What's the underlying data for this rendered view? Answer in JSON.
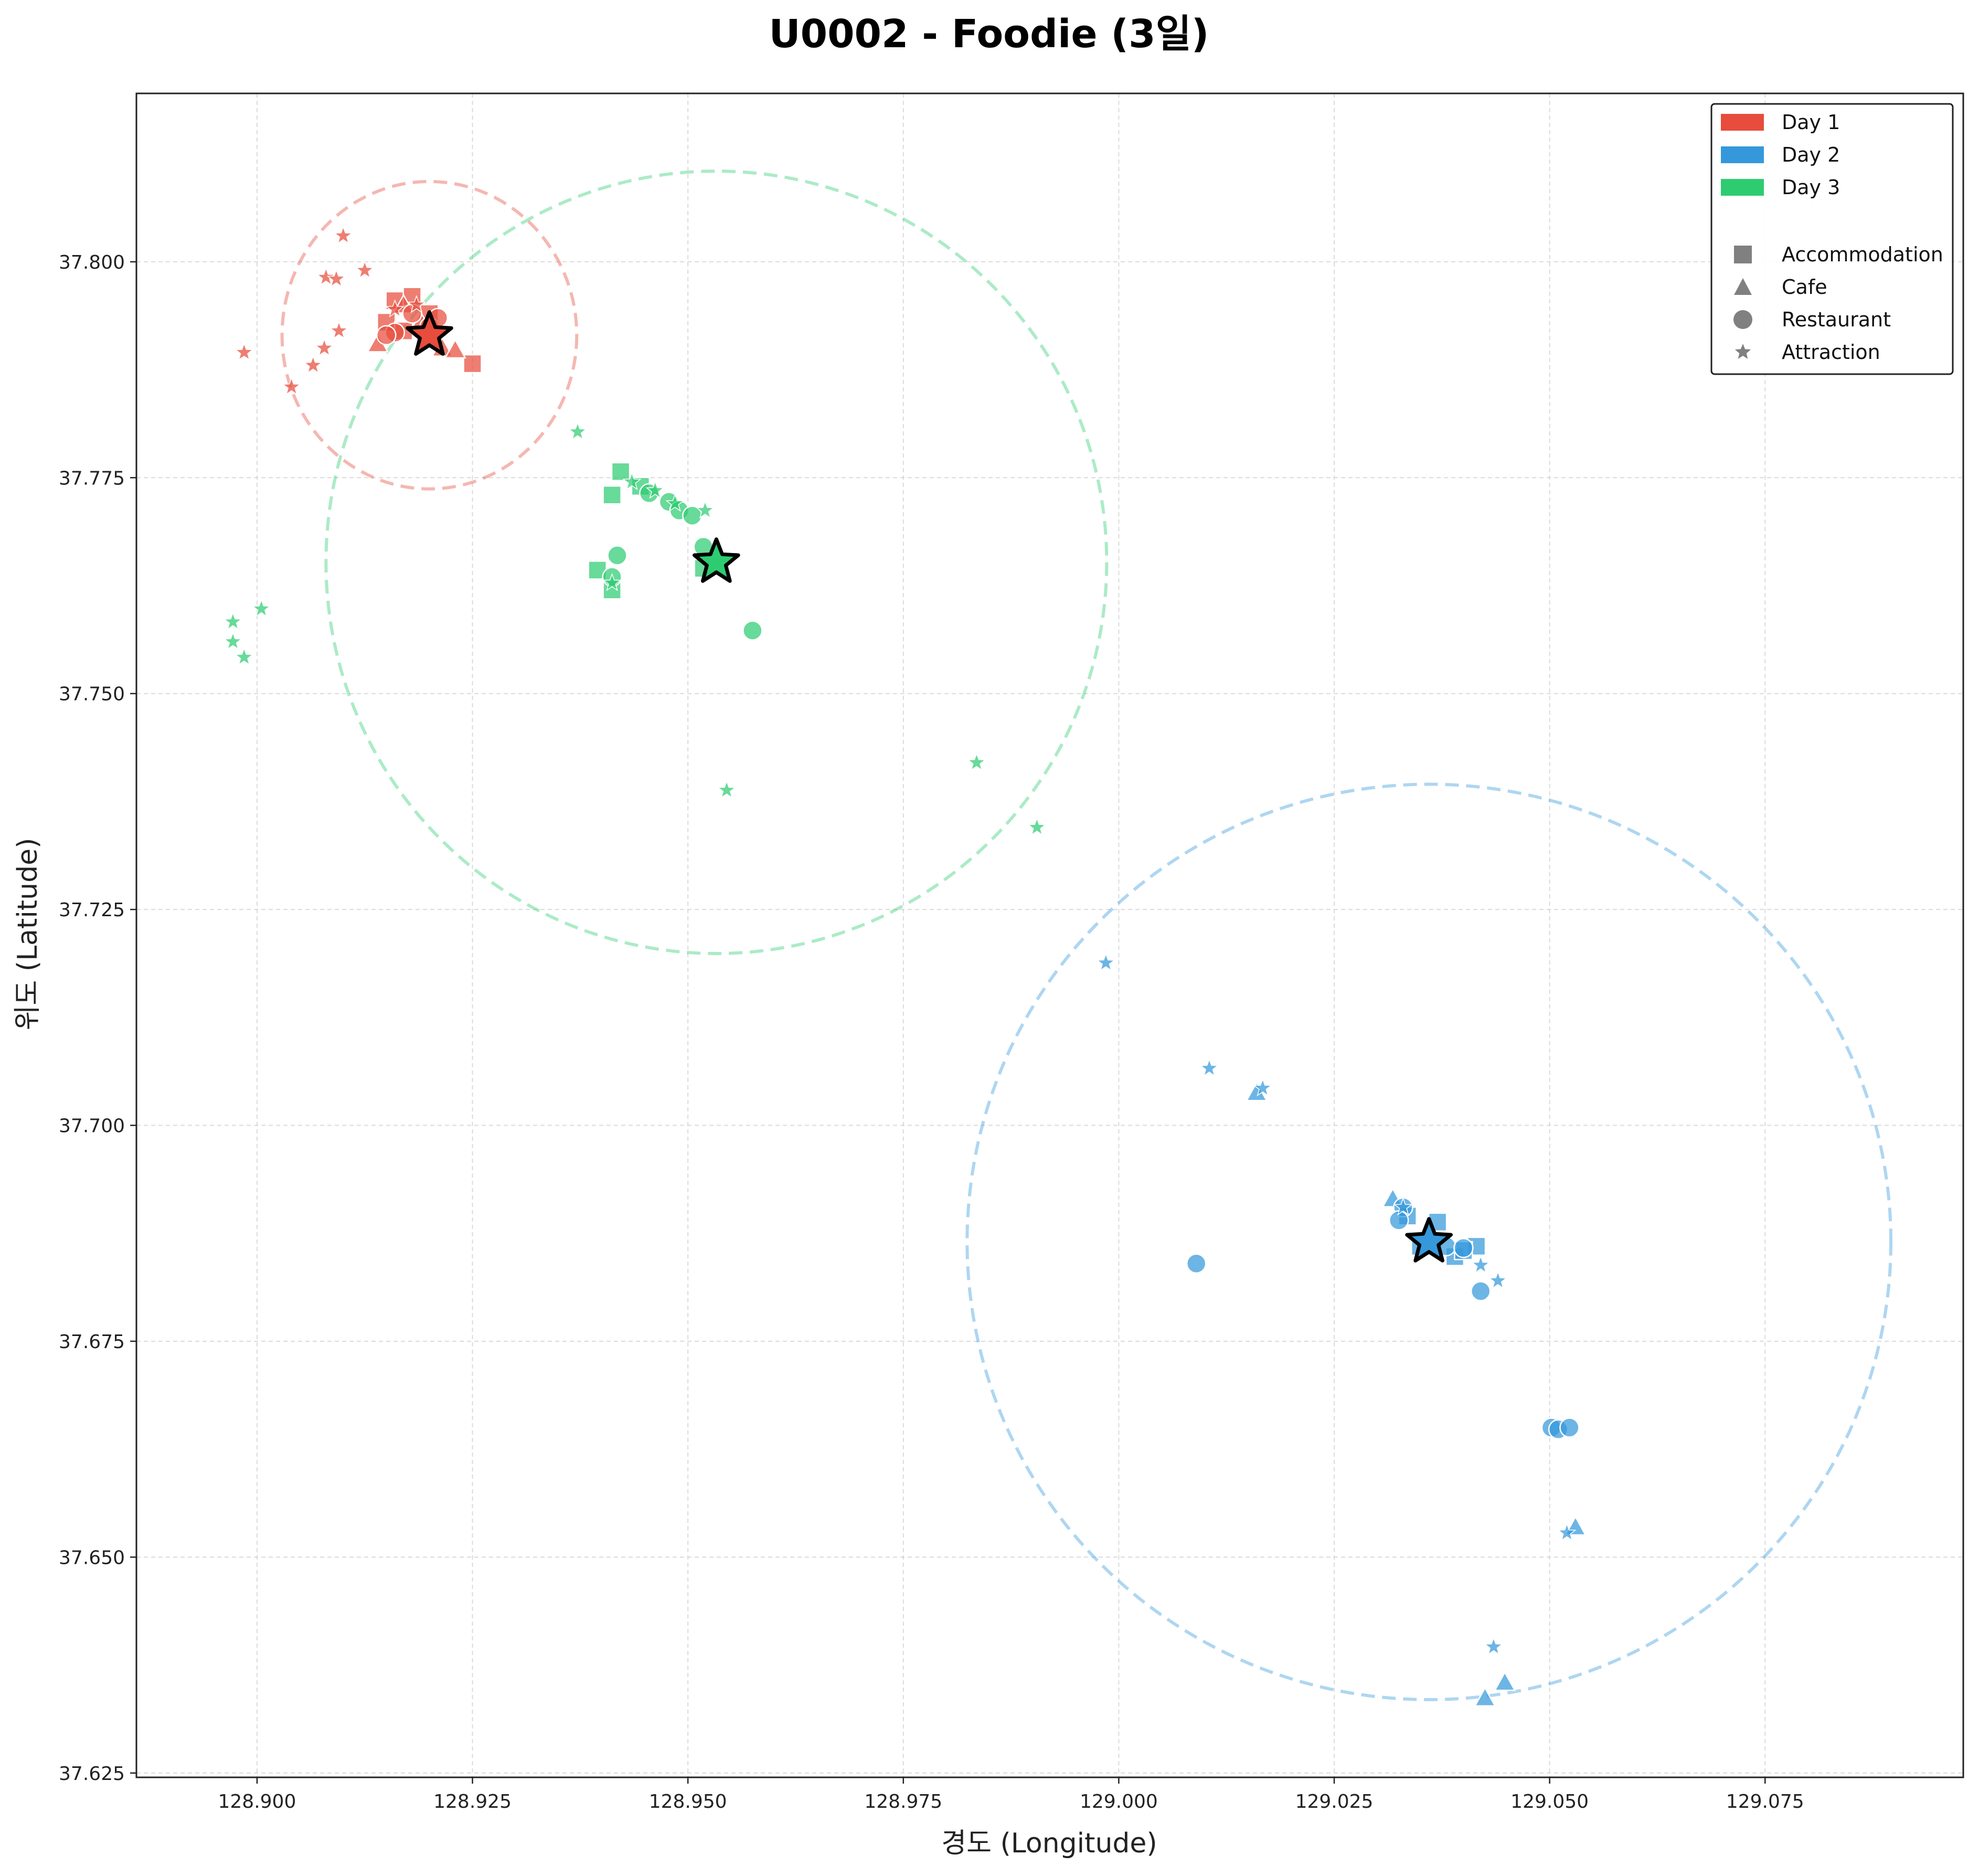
{
  "chart_data": {
    "type": "scatter",
    "title": "U0002 - Foodie (3일)",
    "xlabel": "경도 (Longitude)",
    "ylabel": "위도 (Latitude)",
    "xlim": [
      128.886,
      129.098
    ],
    "ylim": [
      37.6245,
      37.8195
    ],
    "xticks": [
      "128.900",
      "128.925",
      "128.950",
      "128.975",
      "129.000",
      "129.025",
      "129.050",
      "129.075"
    ],
    "yticks": [
      "37.625",
      "37.650",
      "37.675",
      "37.700",
      "37.725",
      "37.750",
      "37.775",
      "37.800"
    ],
    "grid": true,
    "legend_position": "top-right",
    "legend": {
      "days": [
        {
          "label": "Day 1",
          "color": "#e74c3c"
        },
        {
          "label": "Day 2",
          "color": "#3498db"
        },
        {
          "label": "Day 3",
          "color": "#2ecc71"
        }
      ],
      "categories": [
        {
          "label": "Accommodation",
          "marker": "square"
        },
        {
          "label": "Cafe",
          "marker": "triangle"
        },
        {
          "label": "Restaurant",
          "marker": "circle"
        },
        {
          "label": "Attraction",
          "marker": "star"
        }
      ]
    },
    "series": [
      {
        "name": "Day 1",
        "color": "#e74c3c",
        "center": {
          "x": 128.92,
          "y": 37.7915
        },
        "radius": {
          "dx": 0.0171,
          "dy": 0.0178
        },
        "points": [
          {
            "x": 128.916,
            "y": 37.7955,
            "type": "accommodation"
          },
          {
            "x": 128.918,
            "y": 37.796,
            "type": "accommodation"
          },
          {
            "x": 128.915,
            "y": 37.793,
            "type": "accommodation"
          },
          {
            "x": 128.92,
            "y": 37.794,
            "type": "accommodation"
          },
          {
            "x": 128.917,
            "y": 37.792,
            "type": "accommodation"
          },
          {
            "x": 128.925,
            "y": 37.7882,
            "type": "accommodation"
          },
          {
            "x": 128.914,
            "y": 37.7905,
            "type": "cafe"
          },
          {
            "x": 128.917,
            "y": 37.795,
            "type": "cafe"
          },
          {
            "x": 128.919,
            "y": 37.793,
            "type": "cafe"
          },
          {
            "x": 128.9215,
            "y": 37.79,
            "type": "cafe"
          },
          {
            "x": 128.923,
            "y": 37.7898,
            "type": "cafe"
          },
          {
            "x": 128.916,
            "y": 37.7918,
            "type": "restaurant"
          },
          {
            "x": 128.918,
            "y": 37.794,
            "type": "restaurant"
          },
          {
            "x": 128.92,
            "y": 37.7925,
            "type": "restaurant"
          },
          {
            "x": 128.921,
            "y": 37.7935,
            "type": "restaurant"
          },
          {
            "x": 128.915,
            "y": 37.7915,
            "type": "restaurant"
          },
          {
            "x": 128.91,
            "y": 37.803,
            "type": "attraction"
          },
          {
            "x": 128.9125,
            "y": 37.799,
            "type": "attraction"
          },
          {
            "x": 128.908,
            "y": 37.7982,
            "type": "attraction"
          },
          {
            "x": 128.9092,
            "y": 37.798,
            "type": "attraction"
          },
          {
            "x": 128.9095,
            "y": 37.792,
            "type": "attraction"
          },
          {
            "x": 128.9078,
            "y": 37.79,
            "type": "attraction"
          },
          {
            "x": 128.8985,
            "y": 37.7895,
            "type": "attraction"
          },
          {
            "x": 128.9065,
            "y": 37.788,
            "type": "attraction"
          },
          {
            "x": 128.904,
            "y": 37.7855,
            "type": "attraction"
          },
          {
            "x": 128.916,
            "y": 37.7945,
            "type": "attraction"
          },
          {
            "x": 128.9185,
            "y": 37.795,
            "type": "attraction"
          }
        ]
      },
      {
        "name": "Day 2",
        "color": "#3498db",
        "center": {
          "x": 129.036,
          "y": 37.6865
        },
        "radius": {
          "dx": 0.0536,
          "dy": 0.053
        },
        "points": [
          {
            "x": 129.0335,
            "y": 37.6895,
            "type": "accommodation"
          },
          {
            "x": 129.037,
            "y": 37.6888,
            "type": "accommodation"
          },
          {
            "x": 129.035,
            "y": 37.686,
            "type": "accommodation"
          },
          {
            "x": 129.039,
            "y": 37.6848,
            "type": "accommodation"
          },
          {
            "x": 129.0415,
            "y": 37.686,
            "type": "accommodation"
          },
          {
            "x": 129.04,
            "y": 37.6855,
            "type": "accommodation"
          },
          {
            "x": 129.016,
            "y": 37.7038,
            "type": "cafe"
          },
          {
            "x": 129.0318,
            "y": 37.6915,
            "type": "cafe"
          },
          {
            "x": 129.053,
            "y": 37.6535,
            "type": "cafe"
          },
          {
            "x": 129.0448,
            "y": 37.6355,
            "type": "cafe"
          },
          {
            "x": 129.0425,
            "y": 37.6337,
            "type": "cafe"
          },
          {
            "x": 129.033,
            "y": 37.6905,
            "type": "restaurant"
          },
          {
            "x": 129.0325,
            "y": 37.689,
            "type": "restaurant"
          },
          {
            "x": 129.038,
            "y": 37.686,
            "type": "restaurant"
          },
          {
            "x": 129.04,
            "y": 37.6858,
            "type": "restaurant"
          },
          {
            "x": 129.009,
            "y": 37.684,
            "type": "restaurant"
          },
          {
            "x": 129.042,
            "y": 37.6808,
            "type": "restaurant"
          },
          {
            "x": 129.0502,
            "y": 37.665,
            "type": "restaurant"
          },
          {
            "x": 129.051,
            "y": 37.6648,
            "type": "restaurant"
          },
          {
            "x": 129.0523,
            "y": 37.665,
            "type": "restaurant"
          },
          {
            "x": 128.9985,
            "y": 37.7188,
            "type": "attraction"
          },
          {
            "x": 129.0105,
            "y": 37.7066,
            "type": "attraction"
          },
          {
            "x": 129.0167,
            "y": 37.7043,
            "type": "attraction"
          },
          {
            "x": 129.033,
            "y": 37.6905,
            "type": "attraction"
          },
          {
            "x": 129.042,
            "y": 37.6838,
            "type": "attraction"
          },
          {
            "x": 129.044,
            "y": 37.682,
            "type": "attraction"
          },
          {
            "x": 129.052,
            "y": 37.6528,
            "type": "attraction"
          },
          {
            "x": 129.0435,
            "y": 37.6396,
            "type": "attraction"
          }
        ]
      },
      {
        "name": "Day 3",
        "color": "#2ecc71",
        "center": {
          "x": 128.9533,
          "y": 37.7652
        },
        "radius": {
          "dx": 0.0453,
          "dy": 0.0453
        },
        "points": [
          {
            "x": 128.9422,
            "y": 37.7757,
            "type": "accommodation"
          },
          {
            "x": 128.9412,
            "y": 37.773,
            "type": "accommodation"
          },
          {
            "x": 128.9445,
            "y": 37.774,
            "type": "accommodation"
          },
          {
            "x": 128.9395,
            "y": 37.7643,
            "type": "accommodation"
          },
          {
            "x": 128.9412,
            "y": 37.762,
            "type": "accommodation"
          },
          {
            "x": 128.9518,
            "y": 37.7645,
            "type": "accommodation"
          },
          {
            "x": 128.9418,
            "y": 37.766,
            "type": "restaurant"
          },
          {
            "x": 128.9412,
            "y": 37.7635,
            "type": "restaurant"
          },
          {
            "x": 128.9455,
            "y": 37.7732,
            "type": "restaurant"
          },
          {
            "x": 128.9478,
            "y": 37.7722,
            "type": "restaurant"
          },
          {
            "x": 128.949,
            "y": 37.7712,
            "type": "restaurant"
          },
          {
            "x": 128.9505,
            "y": 37.7706,
            "type": "restaurant"
          },
          {
            "x": 128.9518,
            "y": 37.767,
            "type": "restaurant"
          },
          {
            "x": 128.9575,
            "y": 37.7573,
            "type": "restaurant"
          },
          {
            "x": 128.9372,
            "y": 37.7803,
            "type": "attraction"
          },
          {
            "x": 128.9435,
            "y": 37.7745,
            "type": "attraction"
          },
          {
            "x": 128.9462,
            "y": 37.7735,
            "type": "attraction"
          },
          {
            "x": 128.9485,
            "y": 37.772,
            "type": "attraction"
          },
          {
            "x": 128.952,
            "y": 37.7712,
            "type": "attraction"
          },
          {
            "x": 128.9412,
            "y": 37.7628,
            "type": "attraction"
          },
          {
            "x": 128.9005,
            "y": 37.7598,
            "type": "attraction"
          },
          {
            "x": 128.8972,
            "y": 37.7583,
            "type": "attraction"
          },
          {
            "x": 128.8972,
            "y": 37.756,
            "type": "attraction"
          },
          {
            "x": 128.8985,
            "y": 37.7542,
            "type": "attraction"
          },
          {
            "x": 128.9545,
            "y": 37.7388,
            "type": "attraction"
          },
          {
            "x": 128.9835,
            "y": 37.742,
            "type": "attraction"
          },
          {
            "x": 128.9905,
            "y": 37.7345,
            "type": "attraction"
          }
        ]
      }
    ]
  }
}
